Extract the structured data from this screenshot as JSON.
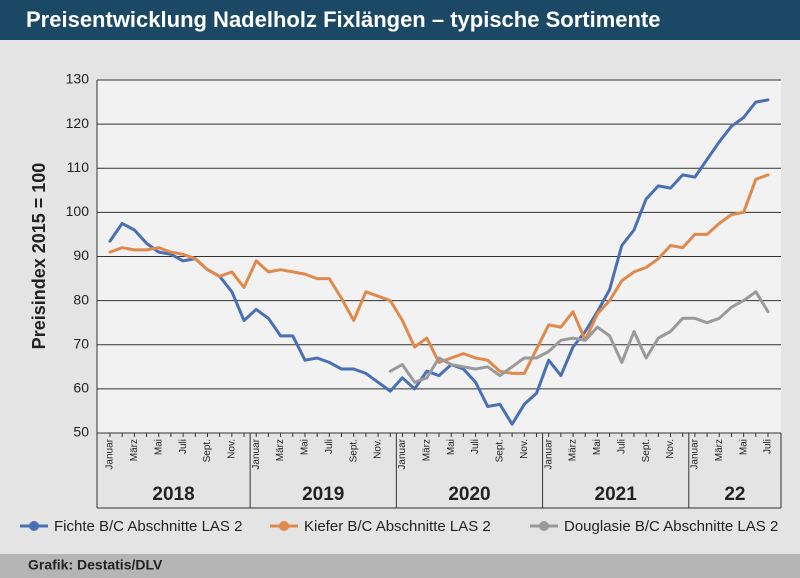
{
  "chart_data": {
    "type": "line",
    "title": "Preisentwicklung Nadelholz Fixlängen – typische Sortimente",
    "ylabel": "Preisindex 2015 = 100",
    "source": "Grafik: Destatis/DLV",
    "categories": [
      "Januar",
      null,
      "März",
      null,
      "Mai",
      null,
      "Juli",
      null,
      "Sept.",
      null,
      "Nov.",
      null,
      "Januar",
      null,
      "März",
      null,
      "Mai",
      null,
      "Juli",
      null,
      "Sept.",
      null,
      "Nov.",
      null,
      "Januar",
      null,
      "März",
      null,
      "Mai",
      null,
      "Juli",
      null,
      "Sept.",
      null,
      "Nov.",
      null,
      "Januar",
      null,
      "März",
      null,
      "Mai",
      null,
      "Juli",
      null,
      "Sept.",
      null,
      "Nov.",
      null,
      "Januar",
      null,
      "März",
      null,
      "Mai",
      null,
      "Juli"
    ],
    "years": [
      "2018",
      "2019",
      "2020",
      "2021",
      "22"
    ],
    "series": [
      {
        "name": "Fichte B/C Abschnitte LAS 2",
        "color": "#4b6fb3",
        "values": [
          93.5,
          97.5,
          96,
          93,
          91,
          90.5,
          89,
          89.5,
          87,
          85.5,
          82,
          75.5,
          78,
          76,
          72,
          72,
          66.5,
          67,
          66,
          64.5,
          64.5,
          63.5,
          61.5,
          59.5,
          62.5,
          60,
          64,
          63,
          65.5,
          64.5,
          61.5,
          56,
          56.5,
          52,
          56.5,
          59,
          66.5,
          63,
          69.5,
          73,
          77.5,
          82.5,
          92.5,
          96,
          103,
          106,
          105.5,
          108.5,
          108,
          112,
          116,
          119.5,
          121.5,
          125,
          125.5
        ]
      },
      {
        "name": "Kiefer B/C Abschnitte LAS 2",
        "color": "#df8a4c",
        "values": [
          91,
          92,
          91.5,
          91.5,
          92,
          91,
          90.5,
          89.5,
          87,
          85.5,
          86.5,
          83,
          89,
          86.5,
          87,
          86.5,
          86,
          85,
          85,
          80.5,
          75.5,
          82,
          81,
          80,
          75.5,
          69.5,
          71.5,
          66,
          67,
          68,
          67,
          66.5,
          64,
          63.5,
          63.5,
          69,
          74.5,
          74,
          77.5,
          71,
          77,
          80,
          84.5,
          86.5,
          87.5,
          89.5,
          92.5,
          92,
          95,
          95,
          97.5,
          99.5,
          100,
          107.5,
          108.5
        ]
      },
      {
        "name": "Douglasie B/C Abschnitte LAS 2",
        "color": "#9a9a9a",
        "values": [
          null,
          null,
          null,
          null,
          null,
          null,
          null,
          null,
          null,
          null,
          null,
          null,
          null,
          null,
          null,
          null,
          null,
          null,
          null,
          null,
          null,
          null,
          null,
          64,
          65.5,
          61.5,
          62.5,
          67,
          65.5,
          65,
          64.5,
          65,
          63,
          65,
          67,
          67,
          68.5,
          71,
          71.5,
          71,
          74,
          72,
          66,
          73,
          67,
          71.5,
          73,
          76,
          76,
          75,
          76,
          78.5,
          80,
          82,
          77.5
        ]
      }
    ],
    "ylim": [
      50,
      130
    ],
    "yticks": [
      50,
      60,
      70,
      80,
      90,
      100,
      110,
      120,
      130
    ],
    "grid": true
  }
}
